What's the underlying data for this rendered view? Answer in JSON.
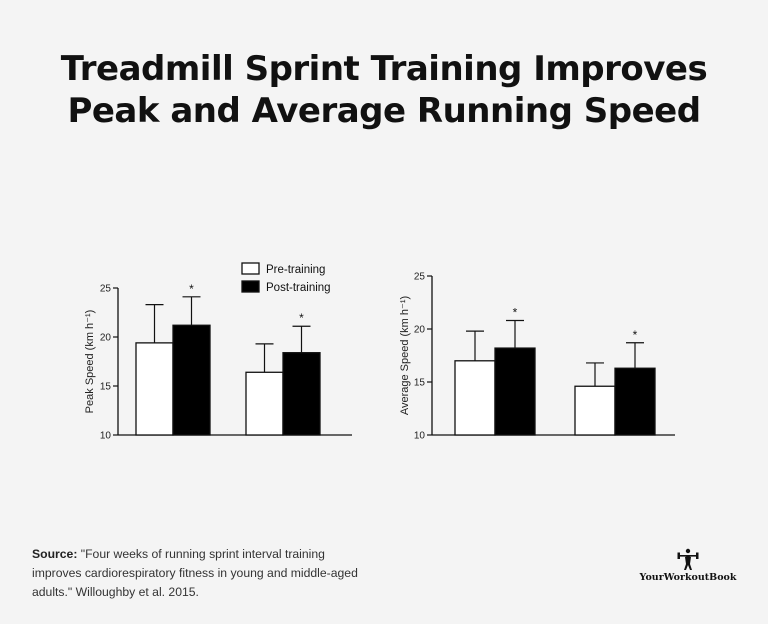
{
  "title": "Treadmill Sprint Training Improves Peak and Average Running Speed",
  "legend": [
    "Pre-training",
    "Post-training"
  ],
  "colors": {
    "pre": "#ffffff",
    "post": "#000000",
    "axis": "#111111"
  },
  "chart_data": [
    {
      "type": "bar",
      "ylabel": "Peak Speed (km h⁻¹)",
      "ylim": [
        10,
        25
      ],
      "yticks": [
        10,
        15,
        20,
        25
      ],
      "groups": 2,
      "series": [
        {
          "name": "Pre-training",
          "values": [
            19.4,
            16.4
          ],
          "errors": [
            3.9,
            2.9
          ]
        },
        {
          "name": "Post-training",
          "values": [
            21.2,
            18.4
          ],
          "errors": [
            2.9,
            2.7
          ]
        }
      ],
      "significance": [
        [
          false,
          true
        ],
        [
          false,
          true
        ]
      ],
      "annotation": "*"
    },
    {
      "type": "bar",
      "ylabel": "Average Speed (km h⁻¹)",
      "ylim": [
        10,
        25
      ],
      "yticks": [
        10,
        15,
        20,
        25
      ],
      "groups": 2,
      "series": [
        {
          "name": "Pre-training",
          "values": [
            17.0,
            14.6
          ],
          "errors": [
            2.8,
            2.2
          ]
        },
        {
          "name": "Post-training",
          "values": [
            18.2,
            16.3
          ],
          "errors": [
            2.6,
            2.4
          ]
        }
      ],
      "significance": [
        [
          false,
          true
        ],
        [
          false,
          true
        ]
      ],
      "annotation": "*"
    }
  ],
  "source": {
    "label": "Source:",
    "text": "\"Four weeks of running sprint interval training improves cardiorespiratory fitness in young and middle-aged adults.\" Willoughby et al. 2015."
  },
  "brand": {
    "name": "YourWorkoutBook",
    "icon": "lifter-logo-icon"
  }
}
